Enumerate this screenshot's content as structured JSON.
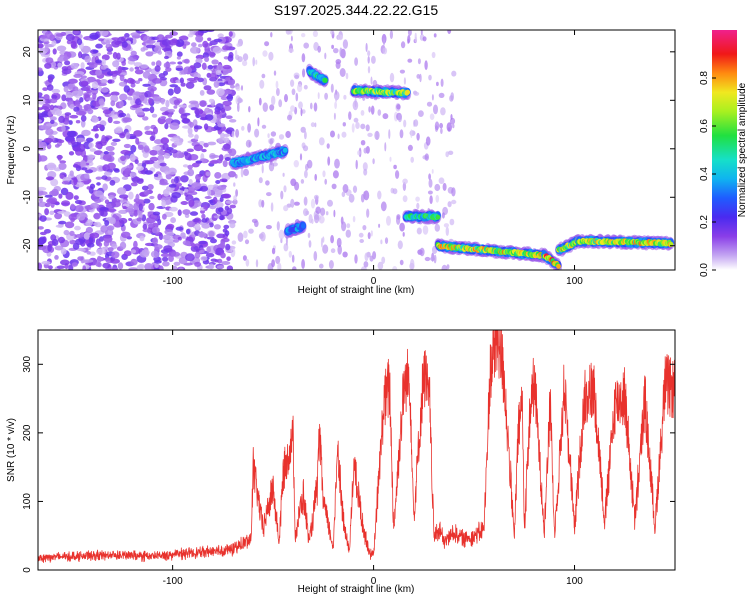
{
  "title": "S197.2025.344.22.22.G15",
  "colors": {
    "snr_line": "#e8322d",
    "axis": "#000000"
  },
  "chart_data": [
    {
      "type": "heatmap",
      "name": "spectrogram",
      "xlabel": "Height of straight line (km)",
      "ylabel": "Frequency (Hz)",
      "xlim": [
        -167,
        150
      ],
      "ylim": [
        -25,
        24.5
      ],
      "xticks": [
        -100,
        0,
        100
      ],
      "xtick_labels": [
        "-100",
        "0",
        "100"
      ],
      "yticks": [
        -20,
        -10,
        0,
        10,
        20
      ],
      "ytick_labels": [
        "-20",
        "-10",
        "0",
        "10",
        "20"
      ],
      "colorbar": {
        "label": "Normalized spectral amplitude",
        "range": [
          0,
          1
        ],
        "ticks": [
          0,
          0.2,
          0.4,
          0.6,
          0.8
        ],
        "tick_labels": [
          "0.0",
          "0.2",
          "0.4",
          "0.6",
          "0.8"
        ],
        "colormap": "white-purple-blue-cyan-green-yellow-red-magenta"
      },
      "noise_region": {
        "x": [
          -167,
          -70
        ],
        "freq": [
          -25,
          24.5
        ],
        "amplitude": 0.15
      },
      "features": [
        {
          "x": [
            -70,
            -44
          ],
          "freq": [
            -3,
            -0.5
          ],
          "amplitude": 0.45
        },
        {
          "x": [
            -43,
            -35
          ],
          "freq": [
            -17,
            -16
          ],
          "amplitude": 0.4
        },
        {
          "x": [
            -32,
            -24
          ],
          "freq": [
            16,
            14
          ],
          "amplitude": 0.6
        },
        {
          "x": [
            -10,
            17
          ],
          "freq": [
            12,
            11.5
          ],
          "amplitude": 0.75
        },
        {
          "x": [
            16,
            32
          ],
          "freq": [
            -14,
            -14
          ],
          "amplitude": 0.6
        },
        {
          "x": [
            32,
            85
          ],
          "freq": [
            -20,
            -22
          ],
          "amplitude": 0.85
        },
        {
          "x": [
            85,
            92
          ],
          "freq": [
            -22,
            -24
          ],
          "amplitude": 0.95
        },
        {
          "x": [
            92,
            102
          ],
          "freq": [
            -21,
            -19
          ],
          "amplitude": 0.8
        },
        {
          "x": [
            102,
            148
          ],
          "freq": [
            -19,
            -19.5
          ],
          "amplitude": 0.85
        }
      ]
    },
    {
      "type": "line",
      "name": "snr",
      "xlabel": "Height of straight line (km)",
      "ylabel": "SNR (10 * v/v)",
      "xlim": [
        -167,
        150
      ],
      "ylim": [
        0,
        350
      ],
      "xticks": [
        -100,
        0,
        100
      ],
      "xtick_labels": [
        "-100",
        "0",
        "100"
      ],
      "yticks": [
        0,
        100,
        200,
        300
      ],
      "ytick_labels": [
        "0",
        "100",
        "200",
        "300"
      ],
      "series": [
        {
          "name": "SNR",
          "x": [
            -167,
            -150,
            -130,
            -110,
            -90,
            -70,
            -61,
            -60,
            -55,
            -50,
            -47,
            -45,
            -40,
            -39,
            -35,
            -32,
            -28,
            -27,
            -25,
            -20,
            -18,
            -15,
            -12,
            -10,
            -5,
            -2,
            0,
            3,
            5,
            8,
            10,
            15,
            18,
            20,
            25,
            28,
            30,
            33,
            35,
            40,
            45,
            50,
            55,
            58,
            60,
            62,
            65,
            70,
            72,
            74,
            75,
            78,
            80,
            85,
            88,
            90,
            95,
            100,
            105,
            110,
            115,
            120,
            125,
            130,
            135,
            140,
            145,
            150
          ],
          "values": [
            18,
            20,
            22,
            20,
            25,
            30,
            45,
            150,
            60,
            120,
            40,
            140,
            195,
            50,
            110,
            40,
            120,
            200,
            100,
            30,
            185,
            70,
            25,
            155,
            60,
            25,
            20,
            150,
            240,
            270,
            60,
            265,
            285,
            75,
            290,
            240,
            50,
            60,
            40,
            55,
            45,
            50,
            60,
            290,
            320,
            340,
            280,
            45,
            200,
            250,
            60,
            240,
            275,
            60,
            250,
            50,
            270,
            60,
            255,
            260,
            70,
            240,
            255,
            70,
            250,
            60,
            270,
            260
          ]
        }
      ]
    }
  ]
}
